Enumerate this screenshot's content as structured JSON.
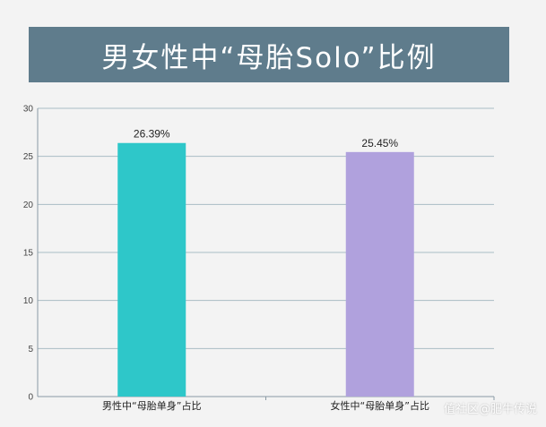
{
  "title": "男女性中“母胎Solo”比例",
  "watermark": "值社区@肥牛传说",
  "chart_data": {
    "type": "bar",
    "categories": [
      "男性中“母胎单身”占比",
      "女性中“母胎单身”占比"
    ],
    "values": [
      26.39,
      25.45
    ],
    "data_labels": [
      "26.39%",
      "25.45%"
    ],
    "colors": [
      "#2ec7c9",
      "#b0a1dd"
    ],
    "ylim": [
      0,
      30
    ],
    "yticks": [
      0,
      5,
      10,
      15,
      20,
      25,
      30
    ],
    "grid": true,
    "xlabel": "",
    "ylabel": ""
  }
}
